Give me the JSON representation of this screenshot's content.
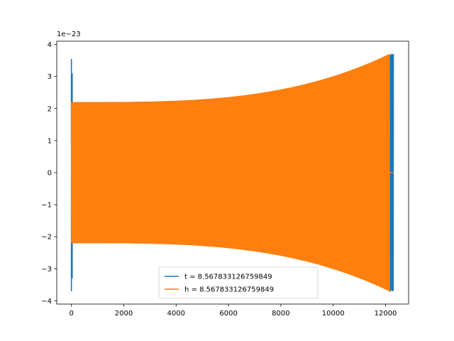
{
  "chart_data": {
    "type": "line",
    "title": "",
    "xlabel": "",
    "ylabel": "",
    "y_offset_label": "1e−23",
    "xlim": [
      -560,
      12880
    ],
    "ylim": [
      -4.1,
      4.1
    ],
    "x_ticks": [
      0,
      2000,
      4000,
      6000,
      8000,
      10000,
      12000
    ],
    "x_tick_labels": [
      "0",
      "2000",
      "4000",
      "6000",
      "8000",
      "10000",
      "12000"
    ],
    "y_ticks": [
      -4,
      -3,
      -2,
      -1,
      0,
      1,
      2,
      3,
      4
    ],
    "y_tick_labels": [
      "−4",
      "−3",
      "−2",
      "−1",
      "0",
      "1",
      "2",
      "3",
      "4"
    ],
    "grid": false,
    "legend_position": "lower-center",
    "series": [
      {
        "name": "t = 8.567833126759849",
        "color": "#1f77b4",
        "style": "oscillation",
        "x_start": 0,
        "x_end": 12300,
        "amplitude_start": 2.2,
        "amplitude_end": 3.7,
        "spikes": [
          {
            "x": 0,
            "top": 3.55,
            "bottom": -3.7
          },
          {
            "x": 30,
            "top": 3.1,
            "bottom": -3.3
          },
          {
            "x": 12180,
            "top": 3.68,
            "bottom": -3.72
          },
          {
            "x": 12230,
            "top": 3.7,
            "bottom": -3.65
          }
        ]
      },
      {
        "name": "h = 8.567833126759849",
        "color": "#ff7f0e",
        "style": "oscillation",
        "x_start": 0,
        "x_end": 12150,
        "amplitude_start": 2.2,
        "amplitude_end": 3.7,
        "tail": {
          "x_start": 12150,
          "x_end": 12300,
          "y": 0
        }
      }
    ]
  }
}
